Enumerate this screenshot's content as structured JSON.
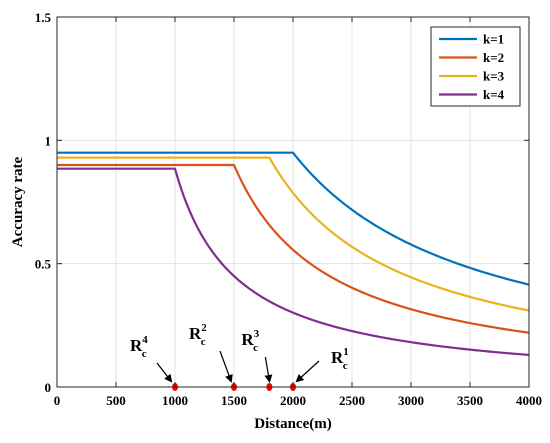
{
  "chart_data": {
    "type": "line",
    "xlabel": "Distance(m)",
    "ylabel": "Accuracy rate",
    "xlim": [
      0,
      4000
    ],
    "ylim": [
      0,
      1.5
    ],
    "xticks": [
      0,
      500,
      1000,
      1500,
      2000,
      2500,
      3000,
      3500,
      4000
    ],
    "yticks": [
      0,
      0.5,
      1,
      1.5
    ],
    "ytick_labels": [
      "0",
      "0.5",
      "1",
      "1.5"
    ],
    "grid": true,
    "legend_position": "top-right",
    "series": [
      {
        "name": "k=1",
        "color": "#0072BD",
        "plateau": 0.95,
        "knee": 2000,
        "end": 0.415
      },
      {
        "name": "k=2",
        "color": "#D95319",
        "plateau": 0.9,
        "knee": 1500,
        "end": 0.22
      },
      {
        "name": "k=3",
        "color": "#EDB120",
        "plateau": 0.93,
        "knee": 1800,
        "end": 0.31
      },
      {
        "name": "k=4",
        "color": "#7E2F8E",
        "plateau": 0.885,
        "knee": 1000,
        "end": 0.13
      }
    ],
    "markers": [
      {
        "x": 1000,
        "y": 0,
        "label": "R",
        "sub": "c",
        "sup": "4"
      },
      {
        "x": 1500,
        "y": 0,
        "label": "R",
        "sub": "c",
        "sup": "2"
      },
      {
        "x": 1800,
        "y": 0,
        "label": "R",
        "sub": "c",
        "sup": "3"
      },
      {
        "x": 2000,
        "y": 0,
        "label": "R",
        "sub": "c",
        "sup": "1"
      }
    ],
    "marker_color": "#FF0000"
  }
}
